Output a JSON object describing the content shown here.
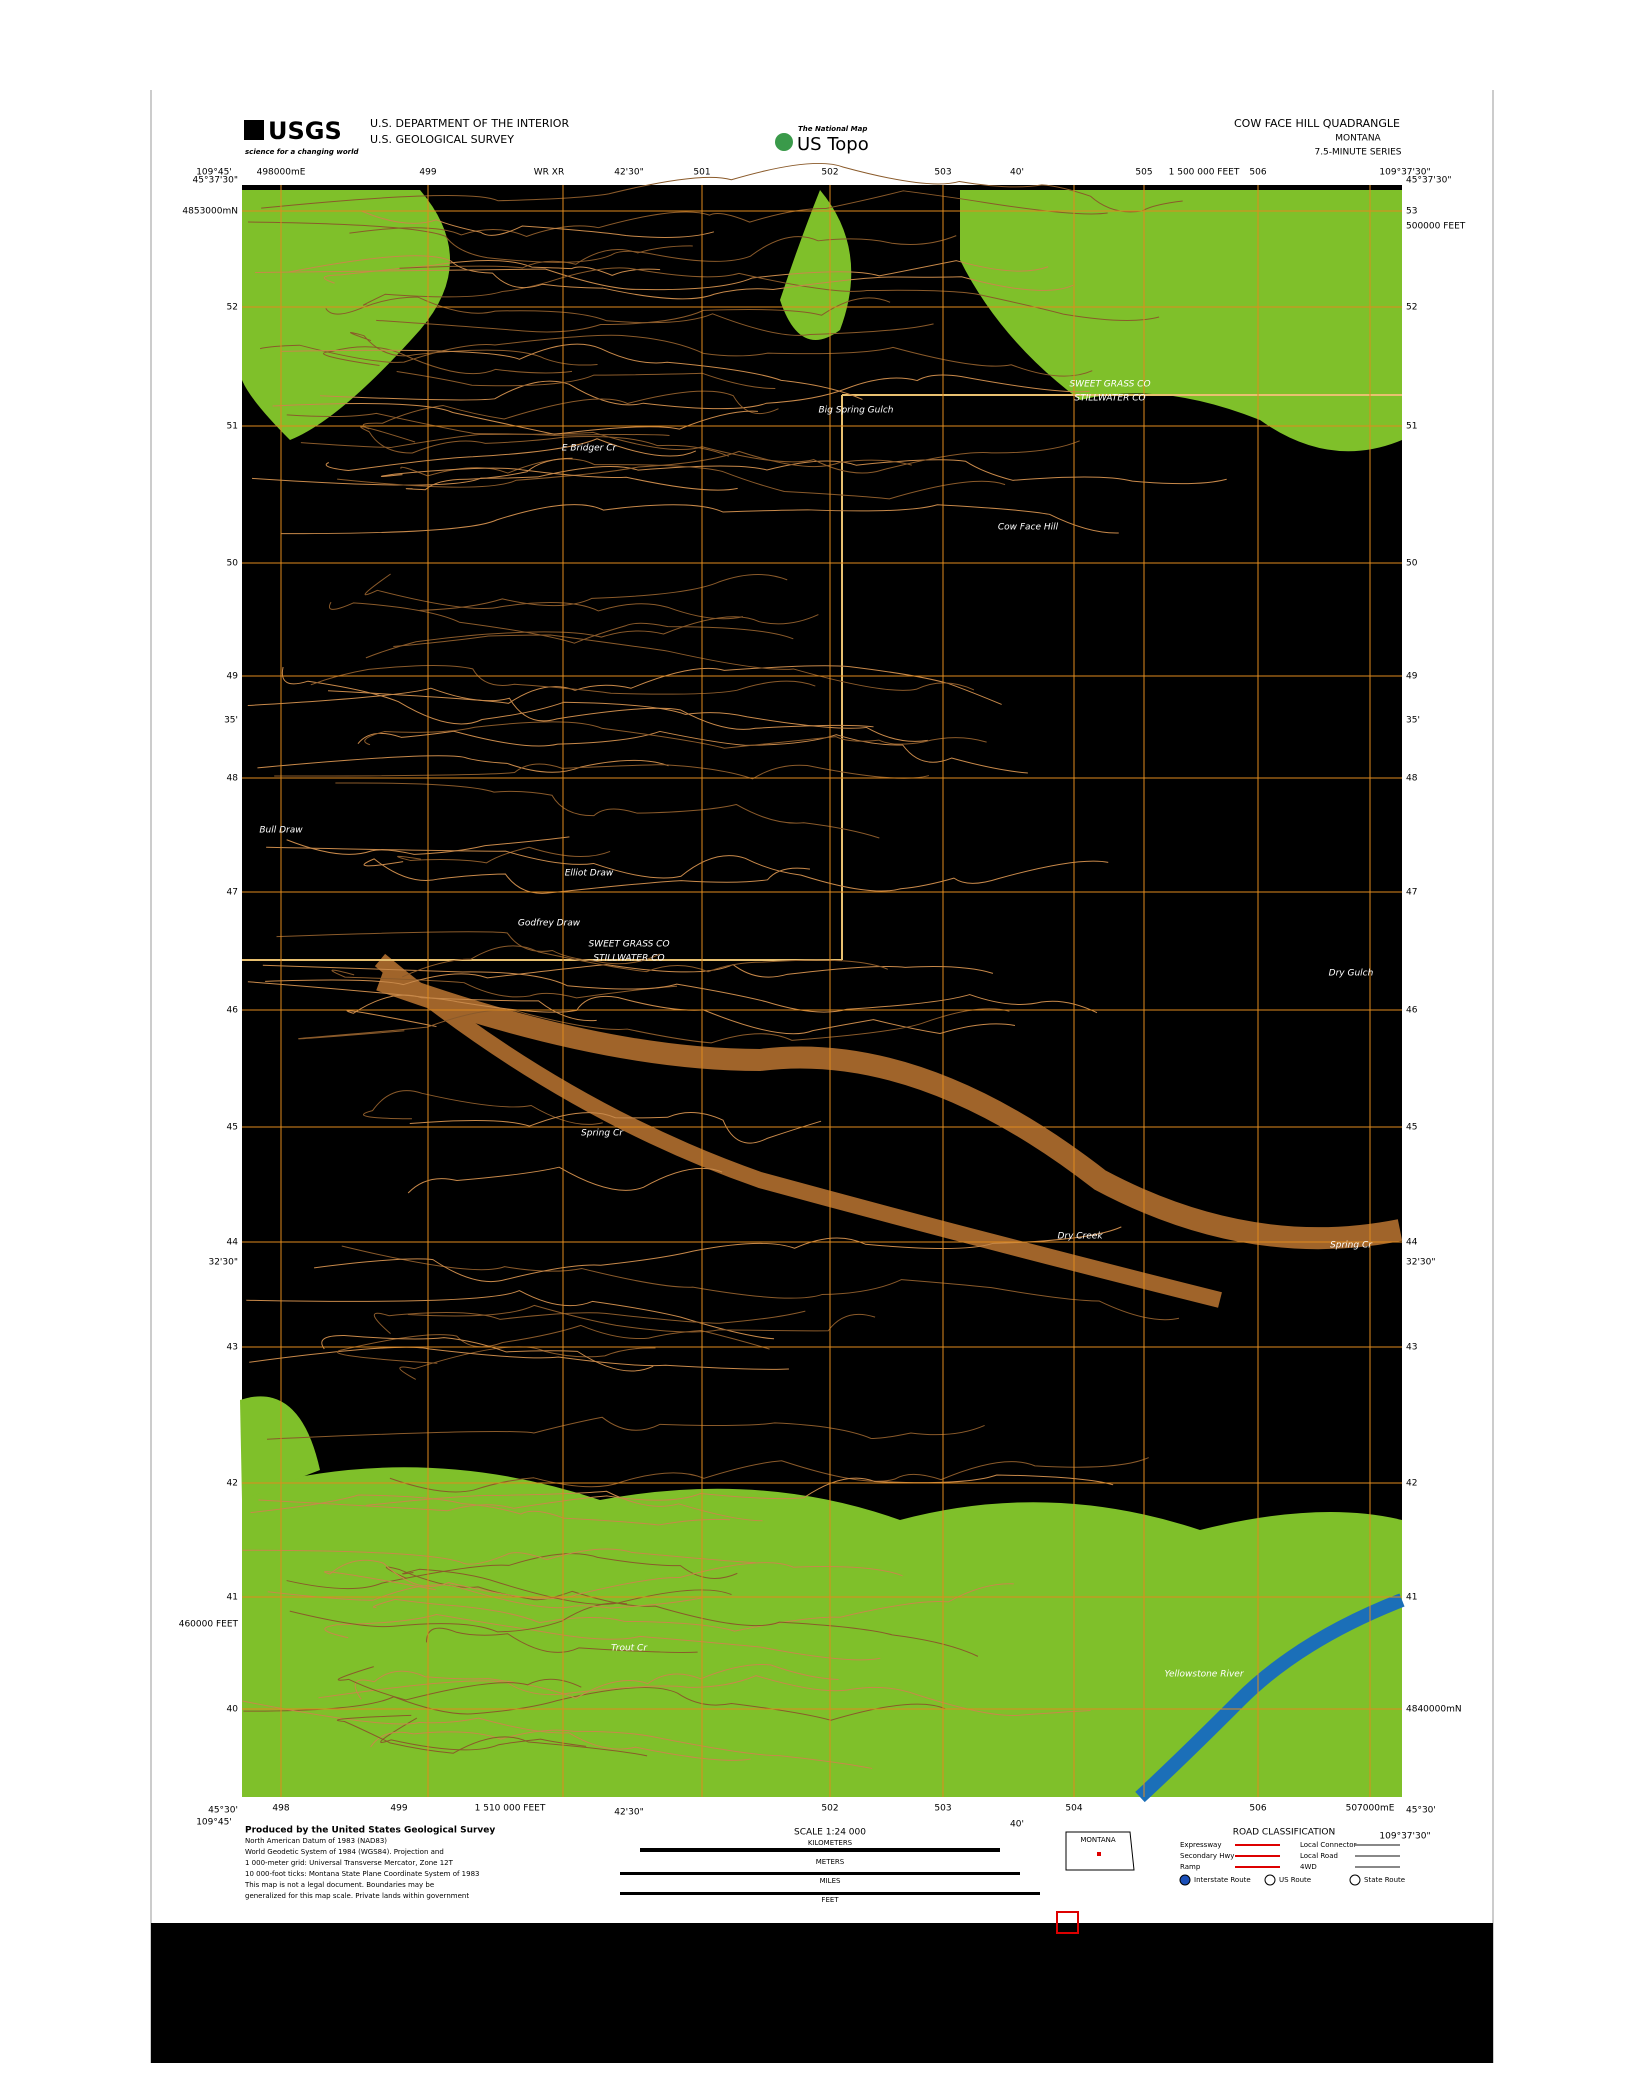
{
  "header": {
    "usgs_logo": "USGS",
    "usgs_tagline": "science for a changing world",
    "agency": [
      "U.S. DEPARTMENT OF THE INTERIOR",
      "U.S. GEOLOGICAL SURVEY"
    ],
    "national_map": "The National Map",
    "us_topo": "US Topo",
    "quadrangle": "COW FACE HILL QUADRANGLE",
    "state": "MONTANA",
    "series": "7.5-MINUTE SERIES"
  },
  "map": {
    "top_labels": [
      "109°45'",
      "498000mE",
      "499",
      "WR   XR",
      "42'30\"",
      "501",
      "502",
      "503",
      "40'",
      "505",
      "1 500 000 FEET",
      "506",
      "109°37'30\""
    ],
    "bottom_labels": [
      "109°45'",
      "498",
      "499",
      "1 510 000 FEET",
      "42'30\"",
      "502",
      "503",
      "504",
      "40'",
      "506",
      "507000mE",
      "109°37'30\""
    ],
    "left_labels": [
      "4853000mN",
      "52",
      "51",
      "50",
      "49",
      "48",
      "47",
      "46",
      "45",
      "44",
      "43",
      "42",
      "41",
      "40"
    ],
    "right_labels": [
      "53",
      "52",
      "51",
      "50",
      "49",
      "48",
      "47",
      "46",
      "45",
      "44",
      "43",
      "42",
      "41",
      "4840000mN"
    ],
    "corner_labels": [
      "45°37'30\"",
      "45°37'30\"",
      "45°30'",
      "45°30'"
    ],
    "side_labels": [
      "35'",
      "35'",
      "32'30\"",
      "32'30\"",
      "500000 FEET",
      "460000 FEET"
    ],
    "place_names": [
      "Big Spring Gulch",
      "SWEET GRASS CO",
      "STILLWATER CO",
      "Cow Face Hill",
      "E Bridger Cr",
      "Elliot Draw",
      "Godfrey Draw",
      "SWEET GRASS CO",
      "STILLWATER CO",
      "Dry Gulch",
      "Spring Cr",
      "Spring Cr",
      "Bull Draw",
      "Trout Cr",
      "Yellowstone River",
      "Dry Creek"
    ]
  },
  "footer": {
    "credits": [
      "Produced by the United States Geological Survey",
      "North American Datum of 1983 (NAD83)",
      "World Geodetic System of 1984 (WGS84). Projection and",
      "1 000-meter grid: Universal Transverse Mercator, Zone 12T",
      "10 000-foot ticks: Montana State Plane Coordinate System of 1983",
      "This map is not a legal document. Boundaries may be",
      "generalized for this map scale. Private lands within government"
    ],
    "scale_title": "SCALE 1:24 000",
    "scale_units": [
      "KILOMETERS",
      "METERS",
      "MILES",
      "FEET"
    ],
    "road_title": "ROAD CLASSIFICATION",
    "road_items": [
      "Expressway",
      "Secondary Hwy",
      "Ramp",
      "Local Connector",
      "Local Road",
      "4WD",
      "Interstate Route",
      "US Route",
      "State Route"
    ],
    "state_label": "MONTANA"
  }
}
